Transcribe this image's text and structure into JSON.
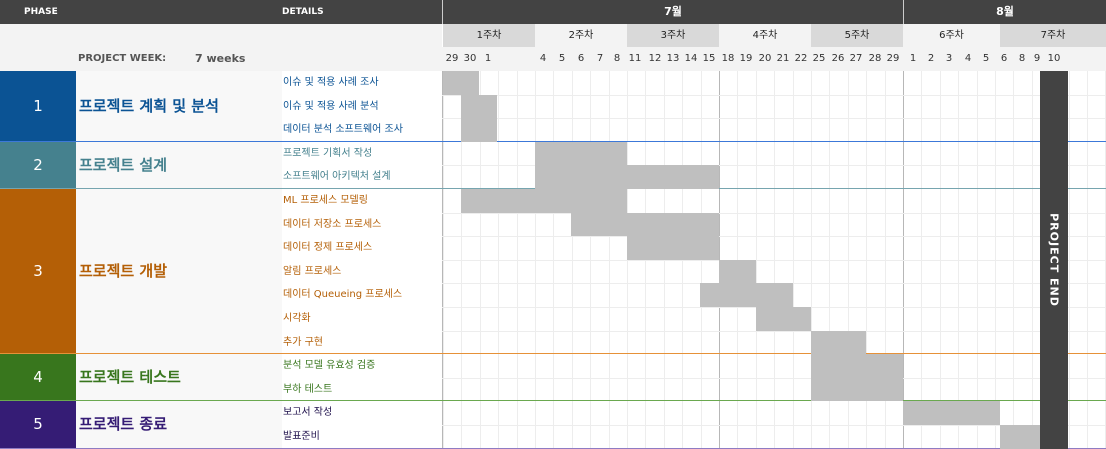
{
  "header": {
    "phase_label": "PHASE",
    "details_label": "DETAILS",
    "project_week_label": "PROJECT WEEK:",
    "project_week_value": "7 weeks",
    "months": [
      "7월",
      "8월"
    ],
    "weeks": [
      "1주차",
      "2주차",
      "3주차",
      "4주차",
      "5주차",
      "6주차",
      "7주차"
    ],
    "days": [
      "29",
      "30",
      "1",
      "4",
      "5",
      "6",
      "7",
      "8",
      "11",
      "12",
      "13",
      "14",
      "15",
      "18",
      "19",
      "20",
      "21",
      "22",
      "25",
      "26",
      "27",
      "28",
      "29",
      "1",
      "2",
      "3",
      "4",
      "5",
      "6",
      "8",
      "9",
      "10"
    ]
  },
  "phases": [
    {
      "num": "1",
      "name": "프로젝트 계획 및 분석",
      "color": "#0b5394",
      "tasks": [
        "이슈 및 적용 사례 조사",
        "이슈 및 적용 사례 분석",
        "데이터 분석 소프트웨어 조사"
      ]
    },
    {
      "num": "2",
      "name": "프로젝트 설계",
      "color": "#45818e",
      "tasks": [
        "프로젝트 기획서 작성",
        "소프트웨어 아키텍처 설계"
      ]
    },
    {
      "num": "3",
      "name": "프로젝트 개발",
      "color": "#b45f06",
      "tasks": [
        "ML 프로세스 모델링",
        "데이터 저장소 프로세스",
        "데이터 정제 프로세스",
        "알림 프로세스",
        "데이터 Queueing 프로세스",
        "시각화",
        "추가 구현"
      ]
    },
    {
      "num": "4",
      "name": "프로젝트 테스트",
      "color": "#38761d",
      "tasks": [
        "분석 모델 유효성 검증",
        "부하 테스트"
      ]
    },
    {
      "num": "5",
      "name": "프로젝트 종료",
      "color": "#351c75",
      "tasks": [
        "보고서 작성",
        "발표준비"
      ]
    }
  ],
  "project_end_label": "PROJECT END"
}
